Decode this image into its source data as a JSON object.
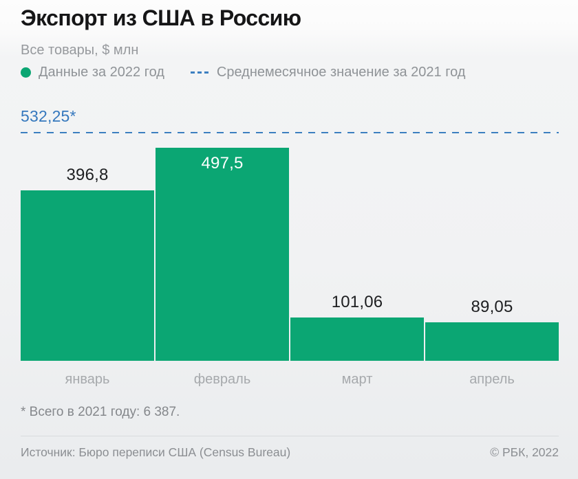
{
  "page": {
    "title": "Экспорт из США в Россию",
    "subtitle": "Все товары, $ млн"
  },
  "legend": {
    "series_2022_label": "Данные за 2022 год",
    "avg_2021_label": "Среднемесячное значение за 2021 год"
  },
  "footnote": "* Всего в 2021 году: 6 387.",
  "footer": {
    "source": "Источник: Бюро переписи США (Census Bureau)",
    "copyright": "© РБК, 2022"
  },
  "colors": {
    "bar_green": "#0ba673",
    "reference_blue": "#3c7fc0",
    "reference_label_blue": "#3578bd",
    "title_text": "#161617",
    "muted_text": "#96999d",
    "axis_label_text": "#a6a9ac",
    "value_label_text": "#1d1e20",
    "value_label_inside_text": "#ffffff",
    "footer_text": "#8b8e92"
  },
  "chart_data": {
    "type": "bar",
    "title": "Экспорт из США в Россию",
    "subtitle": "Все товары, $ млн",
    "series_name": "Данные за 2022 год",
    "categories": [
      "январь",
      "февраль",
      "март",
      "апрель"
    ],
    "values": [
      396.8,
      497.5,
      101.06,
      89.05
    ],
    "value_labels": [
      "396,8",
      "497,5",
      "101,06",
      "89,05"
    ],
    "value_label_placement": [
      "above",
      "inside",
      "above",
      "above"
    ],
    "reference_line": {
      "value": 532.25,
      "label": "532,25*",
      "name": "Среднемесячное значение за 2021 год",
      "style": "dashed"
    },
    "ylim": [
      0,
      560
    ],
    "grid": false,
    "legend_position": "top",
    "footnote": "* Всего в 2021 году: 6 387.",
    "source": "Источник: Бюро переписи США (Census Bureau)"
  }
}
